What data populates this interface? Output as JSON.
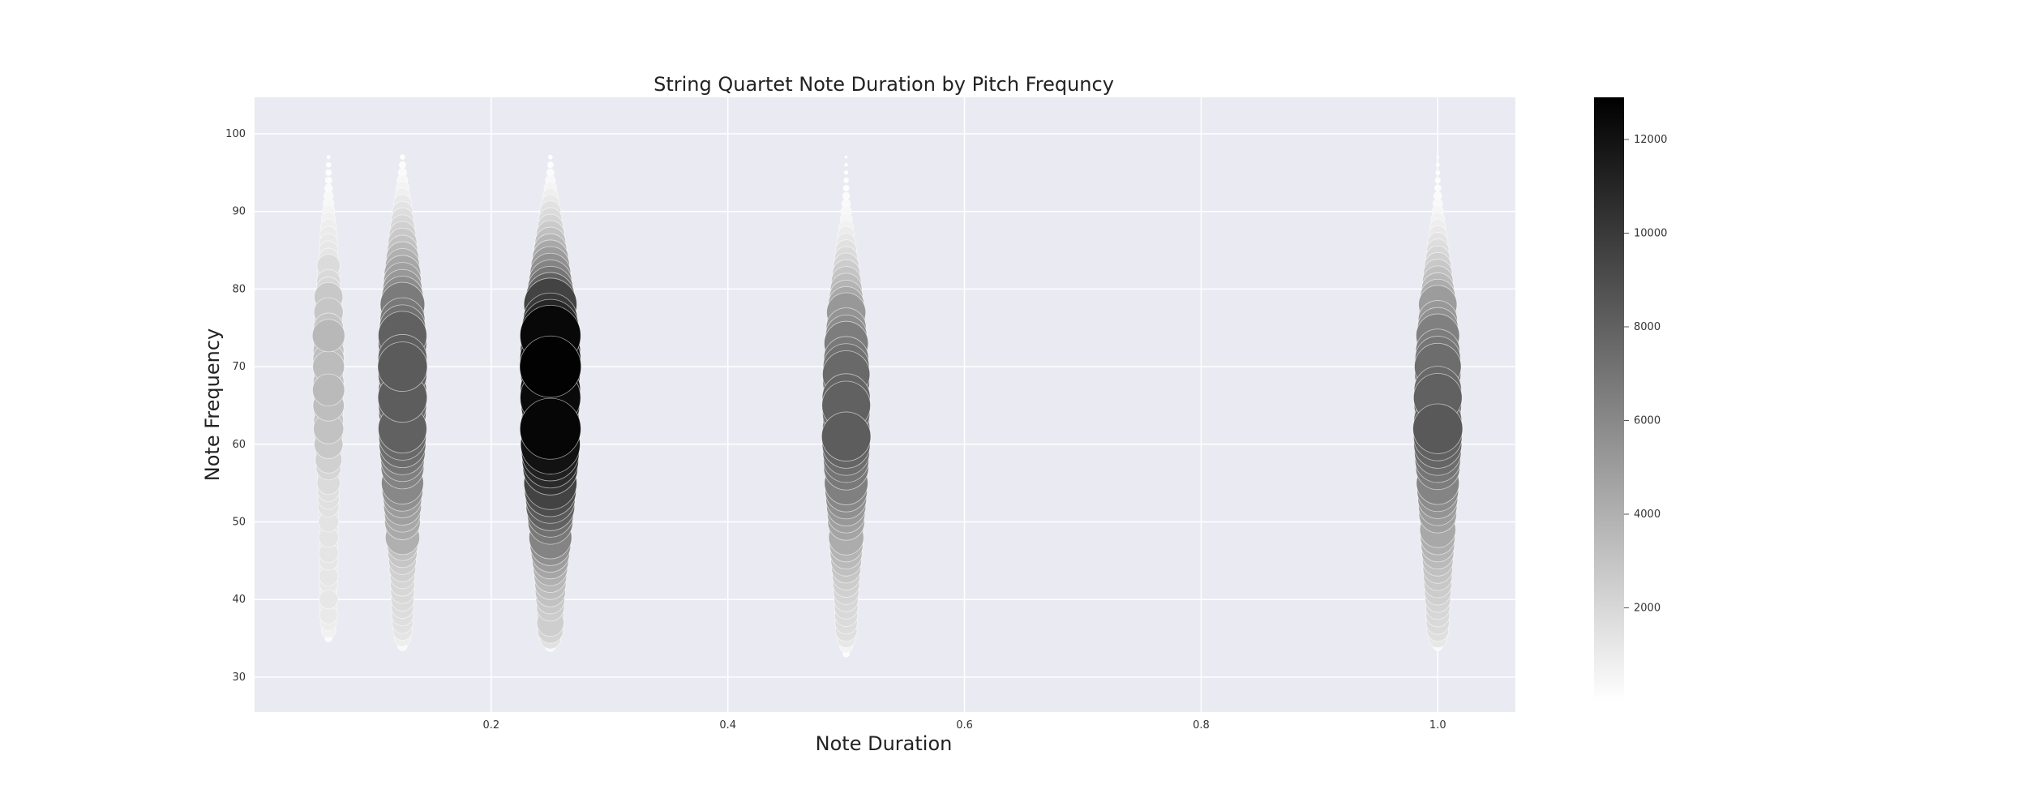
{
  "chart_data": {
    "type": "scatter",
    "title": "String Quartet Note Duration by Pitch Frequncy",
    "xlabel": "Note Duration",
    "ylabel": "Note Frequency",
    "xlim": [
      0.0,
      1.0656
    ],
    "ylim": [
      25.5,
      104.7
    ],
    "xticks": [
      0.2,
      0.4,
      0.6,
      0.8,
      1.0
    ],
    "xtick_labels": [
      "0.2",
      "0.4",
      "0.6",
      "0.8",
      "1.0"
    ],
    "yticks": [
      30,
      40,
      50,
      60,
      70,
      80,
      90,
      100
    ],
    "ytick_labels": [
      "30",
      "40",
      "50",
      "60",
      "70",
      "80",
      "90",
      "100"
    ],
    "grid": true,
    "background": "#eaeaf2",
    "colormap": "greys",
    "colorbar": {
      "range": [
        0,
        12900
      ],
      "ticks": [
        2000,
        4000,
        6000,
        8000,
        10000,
        12000
      ],
      "tick_labels": [
        "2000",
        "4000",
        "6000",
        "8000",
        "10000",
        "12000"
      ]
    },
    "size_encodes": "count",
    "color_encodes": "count",
    "series": [
      {
        "x": 0.0625,
        "pitches": [
          35,
          36,
          37,
          38,
          39,
          40,
          41,
          42,
          43,
          44,
          45,
          46,
          47,
          48,
          49,
          50,
          51,
          52,
          53,
          54,
          55,
          56,
          57,
          58,
          59,
          60,
          61,
          62,
          63,
          64,
          65,
          66,
          67,
          68,
          69,
          70,
          71,
          72,
          73,
          74,
          75,
          76,
          77,
          78,
          79,
          80,
          81,
          82,
          83,
          84,
          85,
          86,
          87,
          88,
          89,
          90,
          91,
          92,
          93,
          94,
          95,
          96,
          97
        ],
        "counts": [
          180,
          700,
          900,
          1100,
          1050,
          1200,
          1000,
          1150,
          1250,
          1100,
          1250,
          1300,
          1200,
          1350,
          1300,
          1400,
          1350,
          1500,
          1550,
          1600,
          1800,
          1700,
          2100,
          2400,
          2300,
          2800,
          2700,
          3100,
          3000,
          2900,
          3300,
          3000,
          3500,
          3200,
          3000,
          3400,
          3300,
          3200,
          3100,
          3600,
          3000,
          2700,
          2900,
          2500,
          2800,
          2000,
          1900,
          1700,
          1800,
          1300,
          1200,
          1100,
          1000,
          850,
          700,
          550,
          400,
          300,
          220,
          160,
          120,
          80,
          40
        ]
      },
      {
        "x": 0.125,
        "pitches": [
          34,
          35,
          36,
          37,
          38,
          39,
          40,
          41,
          42,
          43,
          44,
          45,
          46,
          47,
          48,
          49,
          50,
          51,
          52,
          53,
          54,
          55,
          56,
          57,
          58,
          59,
          60,
          61,
          62,
          63,
          64,
          65,
          66,
          67,
          68,
          69,
          70,
          71,
          72,
          73,
          74,
          75,
          76,
          77,
          78,
          79,
          80,
          81,
          82,
          83,
          84,
          85,
          86,
          87,
          88,
          89,
          90,
          91,
          92,
          93,
          94,
          95,
          96,
          97
        ],
        "counts": [
          300,
          900,
          1300,
          1500,
          1600,
          1700,
          1800,
          1900,
          2000,
          2100,
          2400,
          2600,
          2900,
          3200,
          4000,
          3800,
          4300,
          4400,
          4800,
          5000,
          5600,
          6000,
          5400,
          6200,
          6400,
          7000,
          7400,
          7600,
          8000,
          7200,
          7600,
          7800,
          8200,
          7800,
          7600,
          8000,
          8300,
          8100,
          7800,
          7900,
          8000,
          7200,
          6800,
          6500,
          6700,
          5800,
          5200,
          4800,
          4500,
          4000,
          3600,
          3100,
          2800,
          2400,
          2000,
          1700,
          1400,
          1100,
          800,
          600,
          400,
          250,
          150,
          80
        ]
      },
      {
        "x": 0.25,
        "pitches": [
          34,
          35,
          36,
          37,
          38,
          39,
          40,
          41,
          42,
          43,
          44,
          45,
          46,
          47,
          48,
          49,
          50,
          51,
          52,
          53,
          54,
          55,
          56,
          57,
          58,
          59,
          60,
          61,
          62,
          63,
          64,
          65,
          66,
          67,
          68,
          69,
          70,
          71,
          72,
          73,
          74,
          75,
          76,
          77,
          78,
          79,
          80,
          81,
          82,
          83,
          84,
          85,
          86,
          87,
          88,
          89,
          90,
          91,
          92,
          93,
          94,
          95,
          96,
          97
        ],
        "counts": [
          400,
          1500,
          2200,
          2500,
          2400,
          2600,
          2800,
          3100,
          3300,
          3600,
          4000,
          4500,
          5000,
          5600,
          6200,
          6000,
          6800,
          7200,
          8000,
          8300,
          9000,
          9500,
          9200,
          10200,
          10800,
          11300,
          12000,
          11800,
          12600,
          11400,
          11000,
          11600,
          12400,
          12200,
          11600,
          12000,
          12800,
          12500,
          12200,
          12000,
          12500,
          11000,
          10000,
          9000,
          9500,
          8000,
          7000,
          6200,
          5600,
          5000,
          4400,
          3700,
          3200,
          2700,
          2200,
          1800,
          1500,
          1100,
          800,
          550,
          350,
          200,
          120,
          60
        ]
      },
      {
        "x": 0.5,
        "pitches": [
          33,
          34,
          35,
          36,
          37,
          38,
          39,
          40,
          41,
          42,
          43,
          44,
          45,
          46,
          47,
          48,
          49,
          50,
          51,
          52,
          53,
          54,
          55,
          56,
          57,
          58,
          59,
          60,
          61,
          62,
          63,
          64,
          65,
          66,
          67,
          68,
          69,
          70,
          71,
          72,
          73,
          74,
          75,
          76,
          77,
          78,
          79,
          80,
          81,
          82,
          83,
          84,
          85,
          86,
          87,
          88,
          89,
          90,
          91,
          92,
          93,
          94,
          95,
          96,
          97
        ],
        "counts": [
          150,
          600,
          1200,
          1600,
          1700,
          1800,
          1900,
          2000,
          2200,
          2400,
          2600,
          2900,
          3200,
          3500,
          3800,
          4200,
          4100,
          4600,
          4800,
          5200,
          5600,
          6000,
          6400,
          6200,
          6800,
          7000,
          7400,
          7800,
          8200,
          7600,
          7400,
          7600,
          8000,
          7800,
          7200,
          7400,
          7600,
          7200,
          6800,
          6400,
          6600,
          5800,
          5400,
          5000,
          5200,
          4400,
          3800,
          3400,
          3000,
          2600,
          2200,
          1800,
          1500,
          1200,
          950,
          700,
          500,
          380,
          260,
          180,
          120,
          80,
          50,
          30,
          20
        ]
      },
      {
        "x": 1.0,
        "pitches": [
          34,
          35,
          36,
          37,
          38,
          39,
          40,
          41,
          42,
          43,
          44,
          45,
          46,
          47,
          48,
          49,
          50,
          51,
          52,
          53,
          54,
          55,
          56,
          57,
          58,
          59,
          60,
          61,
          62,
          63,
          64,
          65,
          66,
          67,
          68,
          69,
          70,
          71,
          72,
          73,
          74,
          75,
          76,
          77,
          78,
          79,
          80,
          81,
          82,
          83,
          84,
          85,
          86,
          87,
          88,
          89,
          90,
          91,
          92,
          93,
          94,
          95,
          96,
          97
        ],
        "counts": [
          300,
          1200,
          1600,
          1800,
          1900,
          2000,
          2200,
          2400,
          2600,
          2800,
          3000,
          3200,
          3500,
          3800,
          4100,
          4400,
          4300,
          4800,
          5000,
          5400,
          5800,
          6200,
          6000,
          6600,
          7000,
          7400,
          7800,
          8000,
          8400,
          7800,
          7400,
          7600,
          8000,
          7600,
          7000,
          7200,
          7400,
          7000,
          6600,
          6200,
          6400,
          5600,
          5200,
          4800,
          5000,
          4200,
          3600,
          3200,
          2800,
          2400,
          2000,
          1700,
          1400,
          1100,
          850,
          650,
          450,
          320,
          220,
          150,
          100,
          60,
          40,
          20
        ]
      }
    ]
  }
}
